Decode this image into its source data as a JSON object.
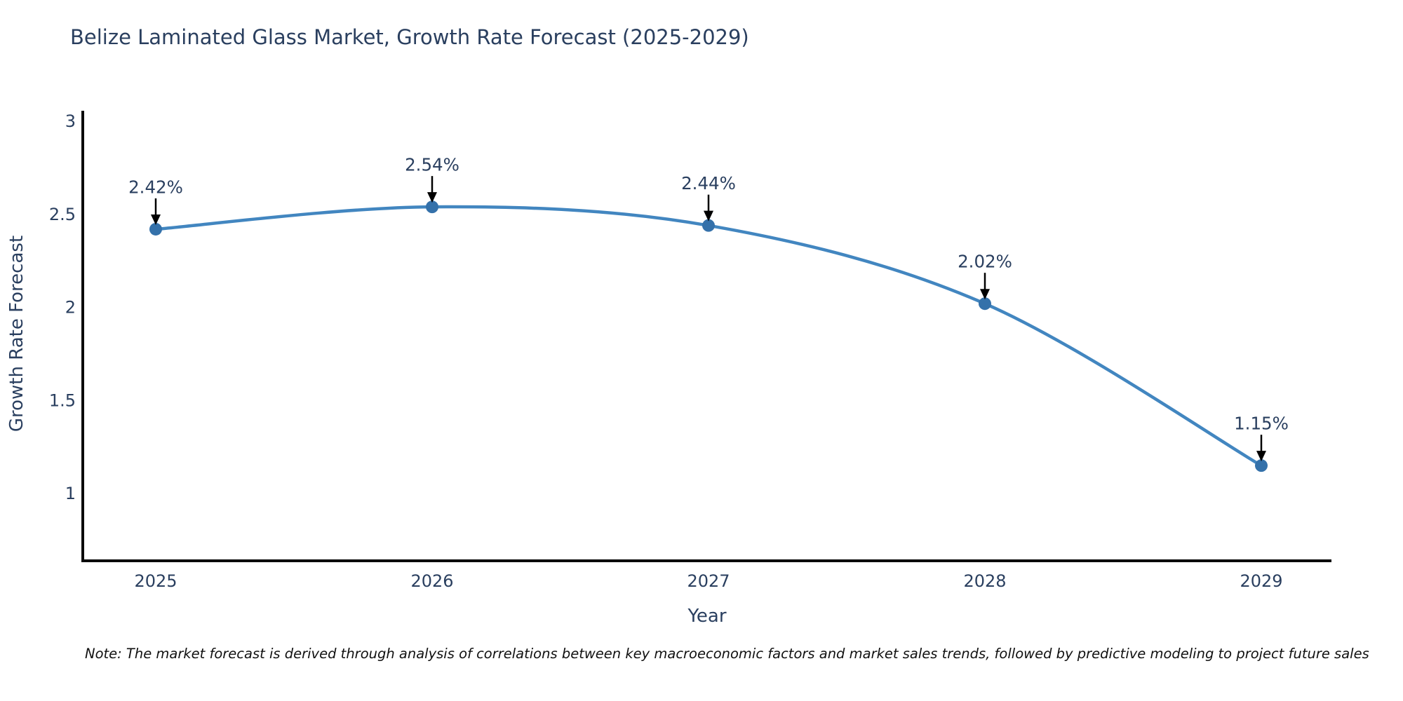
{
  "title": "Belize Laminated Glass Market, Growth Rate Forecast (2025-2029)",
  "note": "Note: The market forecast is derived through analysis of correlations between key macroeconomic factors and market sales trends, followed by predictive modeling to project future sales",
  "chart_data": {
    "type": "line",
    "title": "Belize Laminated Glass Market, Growth Rate Forecast (2025-2029)",
    "categories": [
      "2025",
      "2026",
      "2027",
      "2028",
      "2029"
    ],
    "values": [
      2.42,
      2.54,
      2.44,
      2.02,
      1.15
    ],
    "point_labels": [
      "2.42%",
      "2.54%",
      "2.44%",
      "2.02%",
      "1.15%"
    ],
    "xlabel": "Year",
    "ylabel": "Growth Rate Forecast",
    "yticks": [
      3,
      2.5,
      2,
      1.5,
      1
    ],
    "ylim": [
      0.63,
      3.06
    ],
    "grid": false,
    "legend": "none",
    "smooth": true,
    "line_color": "#4286c0",
    "marker_color": "#3471aa",
    "axis_color": "#0a0a0a",
    "text_color": "#2a3f5f",
    "annotation_arrow_color": "#000000"
  }
}
